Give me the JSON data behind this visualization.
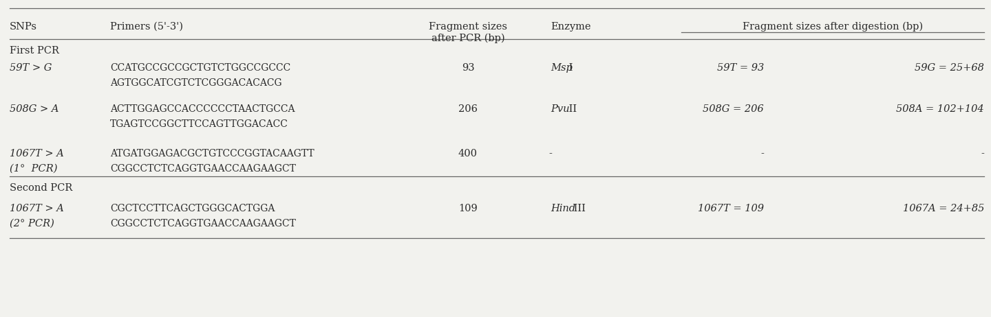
{
  "col_headers": [
    "SNPs",
    "Primers (5'-3')",
    "Fragment sizes\nafter PCR (bp)",
    "Enzyme",
    "Fragment sizes after digestion (bp)"
  ],
  "rows": [
    {
      "snp": "59T > G",
      "primers_line1": "CCATGCCGCCGCTGTCTGGCCGCCC",
      "primers_line2": "AGTGGCATCGTCTCGGGACACACG",
      "fragment": "93",
      "enzyme_italic": "Msp",
      "enzyme_roman": " I",
      "digestion1": "59T = 93",
      "digestion2": "59G = 25+68"
    },
    {
      "snp": "508G > A",
      "primers_line1": "ACTTGGAGCCACCCCCCTAACTGCCA",
      "primers_line2": "TGAGTCCGGCTTCCAGTTGGACACC",
      "fragment": "206",
      "enzyme_italic": "Pvu",
      "enzyme_roman": " II",
      "digestion1": "508G = 206",
      "digestion2": "508A = 102+104"
    },
    {
      "snp": "1067T > A",
      "snp_line2": "(1°  PCR)",
      "primers_line1": "ATGATGGAGACGCTGTCCCGGTACAAGTT",
      "primers_line2": "CGGCCTCTCAGGTGAACCAAGAAGCT",
      "fragment": "400",
      "enzyme_italic": "",
      "enzyme_roman": "-",
      "digestion1": "-",
      "digestion2": "-"
    },
    {
      "snp": "1067T > A",
      "snp_line2": "(2° PCR)",
      "primers_line1": "CGCTCCTTCAGCTGGGCACTGGA",
      "primers_line2": "CGGCCTCTCAGGTGAACCAAGAAGCT",
      "fragment": "109",
      "enzyme_italic": "Hind",
      "enzyme_roman": " III",
      "digestion1": "1067T = 109",
      "digestion2": "1067A = 24+85"
    }
  ],
  "bg_color": "#f2f2ee",
  "text_color": "#2a2a2a",
  "line_color": "#666666",
  "font_size": 10.5,
  "primer_font_size": 10.0
}
